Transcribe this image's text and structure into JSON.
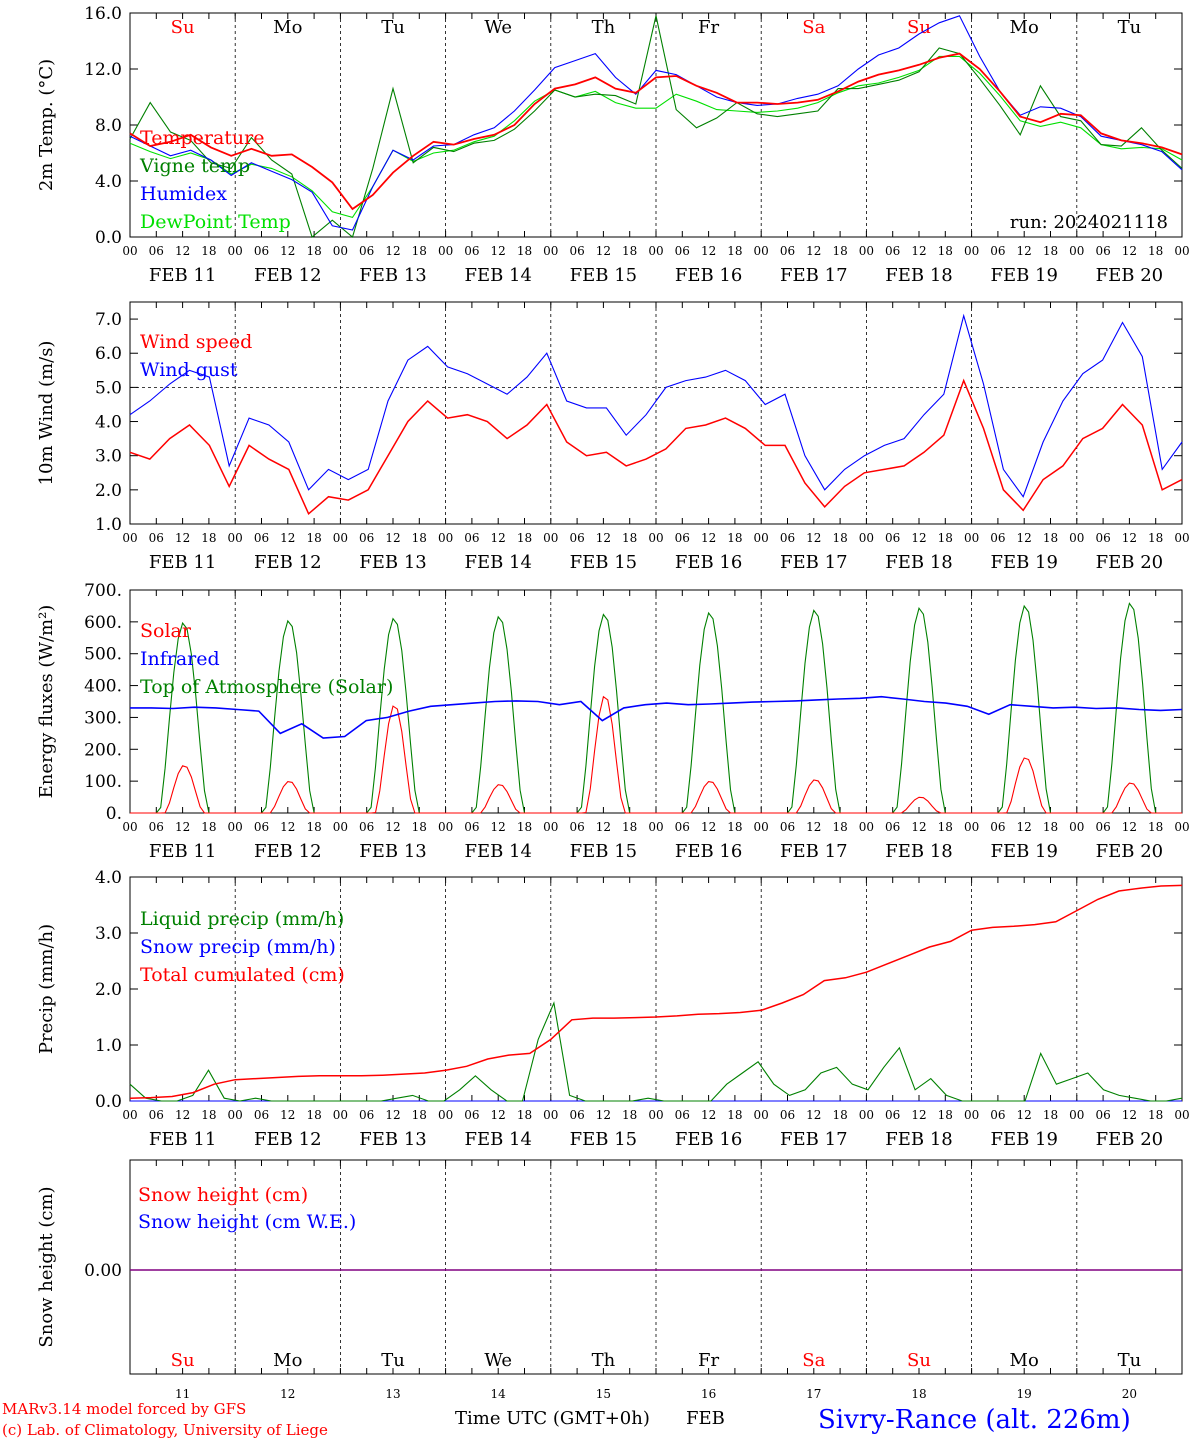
{
  "footer": {
    "credit_1": "MARv3.14 model forced by GFS",
    "credit_2": "(c) Lab. of Climatology, University of Liege",
    "xlabel": "Time UTC (GMT+0h)",
    "month": "FEB",
    "station": "Sivry-Rance (alt. 226m)"
  },
  "colors": {
    "red": "#ff0000",
    "green": "#008000",
    "blue": "#0000ff",
    "lime": "#00e000",
    "purple": "#800080",
    "grid": "#000000"
  },
  "days": {
    "weekdays": [
      "Su",
      "Mo",
      "Tu",
      "We",
      "Th",
      "Fr",
      "Sa",
      "Su",
      "Mo",
      "Tu"
    ],
    "weekend_flags": [
      true,
      false,
      false,
      false,
      false,
      false,
      true,
      true,
      false,
      false
    ],
    "date_labels": [
      "FEB 11",
      "FEB 12",
      "FEB 13",
      "FEB 14",
      "FEB 15",
      "FEB 16",
      "FEB 17",
      "FEB 18",
      "FEB 19",
      "FEB 20"
    ],
    "day_numbers": [
      "11",
      "12",
      "13",
      "14",
      "15",
      "16",
      "17",
      "18",
      "19",
      "20"
    ],
    "hour_ticks": [
      "00",
      "06",
      "12",
      "18"
    ],
    "final_tick": "00"
  },
  "chart_data": [
    {
      "id": "temp",
      "type": "line",
      "ylabel": "2m Temp. (°C)",
      "ylim": [
        0,
        16
      ],
      "yticks": [
        "0.0",
        "4.0",
        "8.0",
        "12.0",
        "16.0"
      ],
      "annotation": "run: 2024021118",
      "series": [
        {
          "name": "Temperature",
          "color": "red",
          "values": [
            7.4,
            6.5,
            6.8,
            7.3,
            6.4,
            5.8,
            6.3,
            5.8,
            5.9,
            5.0,
            3.9,
            2.0,
            3.0,
            4.6,
            5.8,
            6.8,
            6.6,
            7.0,
            7.3,
            8.0,
            9.5,
            10.6,
            10.9,
            11.4,
            10.6,
            10.3,
            11.4,
            11.5,
            10.8,
            10.3,
            9.6,
            9.6,
            9.5,
            9.6,
            9.8,
            10.4,
            11.1,
            11.6,
            11.9,
            12.3,
            12.8,
            13.1,
            12.0,
            10.4,
            8.6,
            8.2,
            8.8,
            8.7,
            7.4,
            6.9,
            6.7,
            6.4,
            5.9
          ]
        },
        {
          "name": "Vigne temp",
          "color": "green",
          "values": [
            7.0,
            9.6,
            7.5,
            6.9,
            5.3,
            4.9,
            7.1,
            5.5,
            4.5,
            -0.5,
            1.2,
            -1.4,
            4.9,
            10.6,
            5.3,
            6.4,
            6.1,
            6.7,
            6.9,
            7.7,
            9.0,
            10.5,
            10.0,
            10.2,
            10.1,
            9.5,
            15.8,
            9.1,
            7.8,
            8.5,
            9.6,
            8.8,
            8.6,
            8.8,
            9.0,
            10.6,
            10.6,
            10.9,
            11.2,
            11.8,
            13.5,
            13.1,
            11.3,
            9.4,
            7.3,
            10.8,
            8.6,
            8.3,
            6.6,
            6.5,
            7.8,
            6.2,
            4.9
          ]
        },
        {
          "name": "Humidex",
          "color": "blue",
          "values": [
            7.2,
            6.5,
            5.8,
            6.2,
            5.5,
            4.4,
            5.3,
            4.7,
            4.1,
            3.2,
            0.8,
            0.5,
            3.6,
            6.2,
            5.5,
            6.5,
            6.6,
            7.3,
            7.8,
            9.0,
            10.5,
            12.1,
            12.6,
            13.1,
            11.4,
            10.2,
            11.9,
            11.6,
            10.8,
            10.0,
            9.6,
            9.4,
            9.5,
            9.9,
            10.2,
            10.8,
            12.0,
            13.0,
            13.5,
            14.5,
            15.3,
            15.8,
            12.9,
            10.4,
            8.7,
            9.3,
            9.2,
            8.6,
            7.2,
            6.9,
            6.6,
            6.1,
            4.8
          ]
        },
        {
          "name": "DewPoint Temp",
          "color": "lime",
          "values": [
            6.7,
            6.1,
            5.6,
            6.0,
            5.5,
            4.5,
            5.2,
            4.9,
            4.3,
            3.3,
            1.8,
            1.4,
            3.6,
            6.2,
            5.4,
            6.0,
            6.2,
            6.8,
            7.2,
            8.3,
            9.7,
            10.5,
            10.0,
            10.4,
            9.6,
            9.2,
            9.2,
            10.2,
            9.7,
            9.1,
            9.0,
            8.9,
            9.0,
            9.2,
            9.6,
            10.3,
            10.8,
            11.0,
            11.4,
            11.9,
            12.9,
            12.9,
            11.7,
            10.1,
            8.3,
            7.9,
            8.2,
            7.8,
            6.6,
            6.3,
            6.4,
            6.3,
            5.5
          ]
        }
      ]
    },
    {
      "id": "wind",
      "type": "line",
      "ylabel": "10m Wind (m/s)",
      "ylim": [
        1,
        7.5
      ],
      "yticks": [
        "1.0",
        "2.0",
        "3.0",
        "4.0",
        "5.0",
        "6.0",
        "7.0"
      ],
      "reference_line": 5.0,
      "series": [
        {
          "name": "Wind speed",
          "color": "red",
          "values": [
            3.1,
            2.9,
            3.5,
            3.9,
            3.3,
            2.1,
            3.3,
            2.9,
            2.6,
            1.3,
            1.8,
            1.7,
            2.0,
            3.0,
            4.0,
            4.6,
            4.1,
            4.2,
            4.0,
            3.5,
            3.9,
            4.5,
            3.4,
            3.0,
            3.1,
            2.7,
            2.9,
            3.2,
            3.8,
            3.9,
            4.1,
            3.8,
            3.3,
            3.3,
            2.2,
            1.5,
            2.1,
            2.5,
            2.6,
            2.7,
            3.1,
            3.6,
            5.2,
            3.8,
            2.0,
            1.4,
            2.3,
            2.7,
            3.5,
            3.8,
            4.5,
            3.9,
            2.0,
            2.3
          ]
        },
        {
          "name": "Wind gust",
          "color": "blue",
          "values": [
            4.2,
            4.6,
            5.1,
            5.5,
            5.3,
            2.7,
            4.1,
            3.9,
            3.4,
            2.0,
            2.6,
            2.3,
            2.6,
            4.6,
            5.8,
            6.2,
            5.6,
            5.4,
            5.1,
            4.8,
            5.3,
            6.0,
            4.6,
            4.4,
            4.4,
            3.6,
            4.2,
            5.0,
            5.2,
            5.3,
            5.5,
            5.2,
            4.5,
            4.8,
            3.0,
            2.0,
            2.6,
            3.0,
            3.3,
            3.5,
            4.2,
            4.8,
            7.1,
            5.1,
            2.6,
            1.8,
            3.4,
            4.6,
            5.4,
            5.8,
            6.9,
            5.9,
            2.6,
            3.4
          ]
        }
      ]
    },
    {
      "id": "energy",
      "type": "line",
      "ylabel": "Energy fluxes (W/m²)",
      "ylim": [
        0,
        700
      ],
      "yticks": [
        "0.",
        "100.",
        "200.",
        "300.",
        "400.",
        "500.",
        "600.",
        "700."
      ],
      "series": [
        {
          "name": "Solar",
          "color": "red",
          "peaks": [
            150,
            100,
            340,
            90,
            370,
            100,
            105,
            50,
            175,
            95
          ]
        },
        {
          "name": "Infrared",
          "color": "blue",
          "values": [
            330,
            330,
            328,
            332,
            330,
            325,
            320,
            250,
            280,
            235,
            240,
            290,
            300,
            320,
            335,
            340,
            345,
            350,
            352,
            350,
            340,
            350,
            290,
            330,
            340,
            345,
            340,
            342,
            345,
            348,
            350,
            352,
            355,
            358,
            360,
            365,
            358,
            350,
            345,
            335,
            310,
            340,
            335,
            330,
            332,
            328,
            330,
            325,
            322,
            325
          ]
        },
        {
          "name": "Top of Atmosphere (Solar)",
          "color": "green",
          "peaks": [
            598,
            605,
            612,
            618,
            625,
            630,
            638,
            645,
            652,
            660
          ]
        }
      ]
    },
    {
      "id": "precip",
      "type": "line",
      "ylabel": "Precip (mm/h)",
      "ylim": [
        0,
        4
      ],
      "yticks": [
        "0.0",
        "1.0",
        "2.0",
        "3.0",
        "4.0"
      ],
      "series": [
        {
          "name": "Liquid precip (mm/h)",
          "color": "green",
          "values": [
            0.3,
            0.05,
            0.0,
            0.0,
            0.1,
            0.55,
            0.05,
            0.0,
            0.05,
            0.0,
            0.0,
            0.0,
            0.0,
            0.0,
            0.0,
            0.0,
            0.0,
            0.05,
            0.1,
            0.0,
            0.0,
            0.2,
            0.45,
            0.2,
            0.0,
            0.0,
            1.1,
            1.75,
            0.1,
            0.0,
            0.0,
            0.0,
            0.0,
            0.05,
            0.0,
            0.0,
            0.0,
            0.0,
            0.3,
            0.5,
            0.7,
            0.3,
            0.1,
            0.2,
            0.5,
            0.6,
            0.3,
            0.2,
            0.6,
            0.95,
            0.2,
            0.4,
            0.1,
            0.0,
            0.0,
            0.0,
            0.0,
            0.0,
            0.85,
            0.3,
            0.4,
            0.5,
            0.2,
            0.1,
            0.05,
            0.0,
            0.0,
            0.05
          ]
        },
        {
          "name": "Snow precip (mm/h)",
          "color": "blue",
          "values": [
            0,
            0
          ]
        },
        {
          "name": "Total cumulated (cm)",
          "color": "red",
          "values": [
            0.05,
            0.06,
            0.08,
            0.15,
            0.3,
            0.38,
            0.4,
            0.42,
            0.44,
            0.45,
            0.45,
            0.45,
            0.46,
            0.48,
            0.5,
            0.55,
            0.62,
            0.75,
            0.82,
            0.85,
            1.1,
            1.45,
            1.48,
            1.48,
            1.49,
            1.5,
            1.52,
            1.55,
            1.56,
            1.58,
            1.62,
            1.75,
            1.9,
            2.15,
            2.2,
            2.3,
            2.45,
            2.6,
            2.75,
            2.85,
            3.05,
            3.1,
            3.12,
            3.15,
            3.2,
            3.4,
            3.6,
            3.75,
            3.8,
            3.84,
            3.85
          ]
        }
      ]
    },
    {
      "id": "snow",
      "type": "line",
      "ylabel": "Snow height (cm)",
      "yticks": [
        "0.00"
      ],
      "series": [
        {
          "name": "Snow height (cm)",
          "color": "red",
          "values": [
            0,
            0
          ]
        },
        {
          "name": "Snow height (cm W.E.)",
          "color": "blue",
          "values": [
            0,
            0
          ]
        }
      ]
    }
  ]
}
